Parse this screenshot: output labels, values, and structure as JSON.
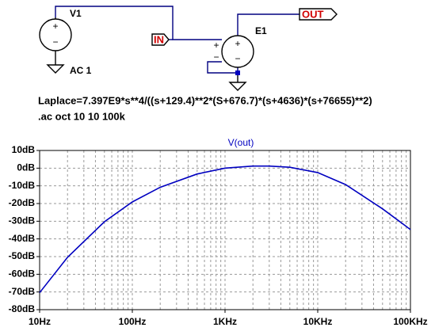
{
  "schematic": {
    "source_name": "V1",
    "source_value": "AC 1",
    "source_pins": [
      "+",
      "−"
    ],
    "in_label": "IN",
    "out_label": "OUT",
    "device_name": "E1",
    "device_pins": [
      "+",
      "−"
    ],
    "input_pins": [
      "+",
      "−"
    ],
    "laplace": "Laplace=7.397E9*s**4/((s+129.4)**2*(S+676.7)*(s+4636)*(s+76655)**2)",
    "directive": ".ac oct 10 10 100k"
  },
  "chart_data": {
    "type": "line",
    "x": [
      10,
      20,
      50,
      100,
      200,
      500,
      1000,
      2000,
      3000,
      5000,
      10000,
      20000,
      50000,
      100000
    ],
    "series": [
      {
        "name": "V(out)",
        "color": "#0000c0",
        "values": [
          -70.4,
          -50.4,
          -30.3,
          -19.1,
          -10.8,
          -3.3,
          0,
          1.2,
          1.2,
          0.5,
          -2.5,
          -9.3,
          -23.0,
          -34.7
        ]
      }
    ],
    "xlim": [
      10,
      100000
    ],
    "ylim": [
      -80,
      10
    ],
    "log_x": true,
    "grid": true,
    "xticks": [
      {
        "value": 10,
        "label": "10Hz"
      },
      {
        "value": 100,
        "label": "100Hz"
      },
      {
        "value": 1000,
        "label": "1KHz"
      },
      {
        "value": 10000,
        "label": "10KHz"
      },
      {
        "value": 100000,
        "label": "100KHz"
      }
    ],
    "xminor_ticks": [
      20,
      30,
      40,
      50,
      60,
      70,
      80,
      90,
      200,
      300,
      400,
      500,
      600,
      700,
      800,
      900,
      2000,
      3000,
      4000,
      5000,
      6000,
      7000,
      8000,
      9000,
      20000,
      30000,
      40000,
      50000,
      60000,
      70000,
      80000,
      90000
    ],
    "yticks": [
      {
        "value": 10,
        "label": "10dB"
      },
      {
        "value": 0,
        "label": "0dB"
      },
      {
        "value": -10,
        "label": "-10dB"
      },
      {
        "value": -20,
        "label": "-20dB"
      },
      {
        "value": -30,
        "label": "-30dB"
      },
      {
        "value": -40,
        "label": "-40dB"
      },
      {
        "value": -50,
        "label": "-50dB"
      },
      {
        "value": -60,
        "label": "-60dB"
      },
      {
        "value": -70,
        "label": "-70dB"
      },
      {
        "value": -80,
        "label": "-80dB"
      }
    ]
  }
}
